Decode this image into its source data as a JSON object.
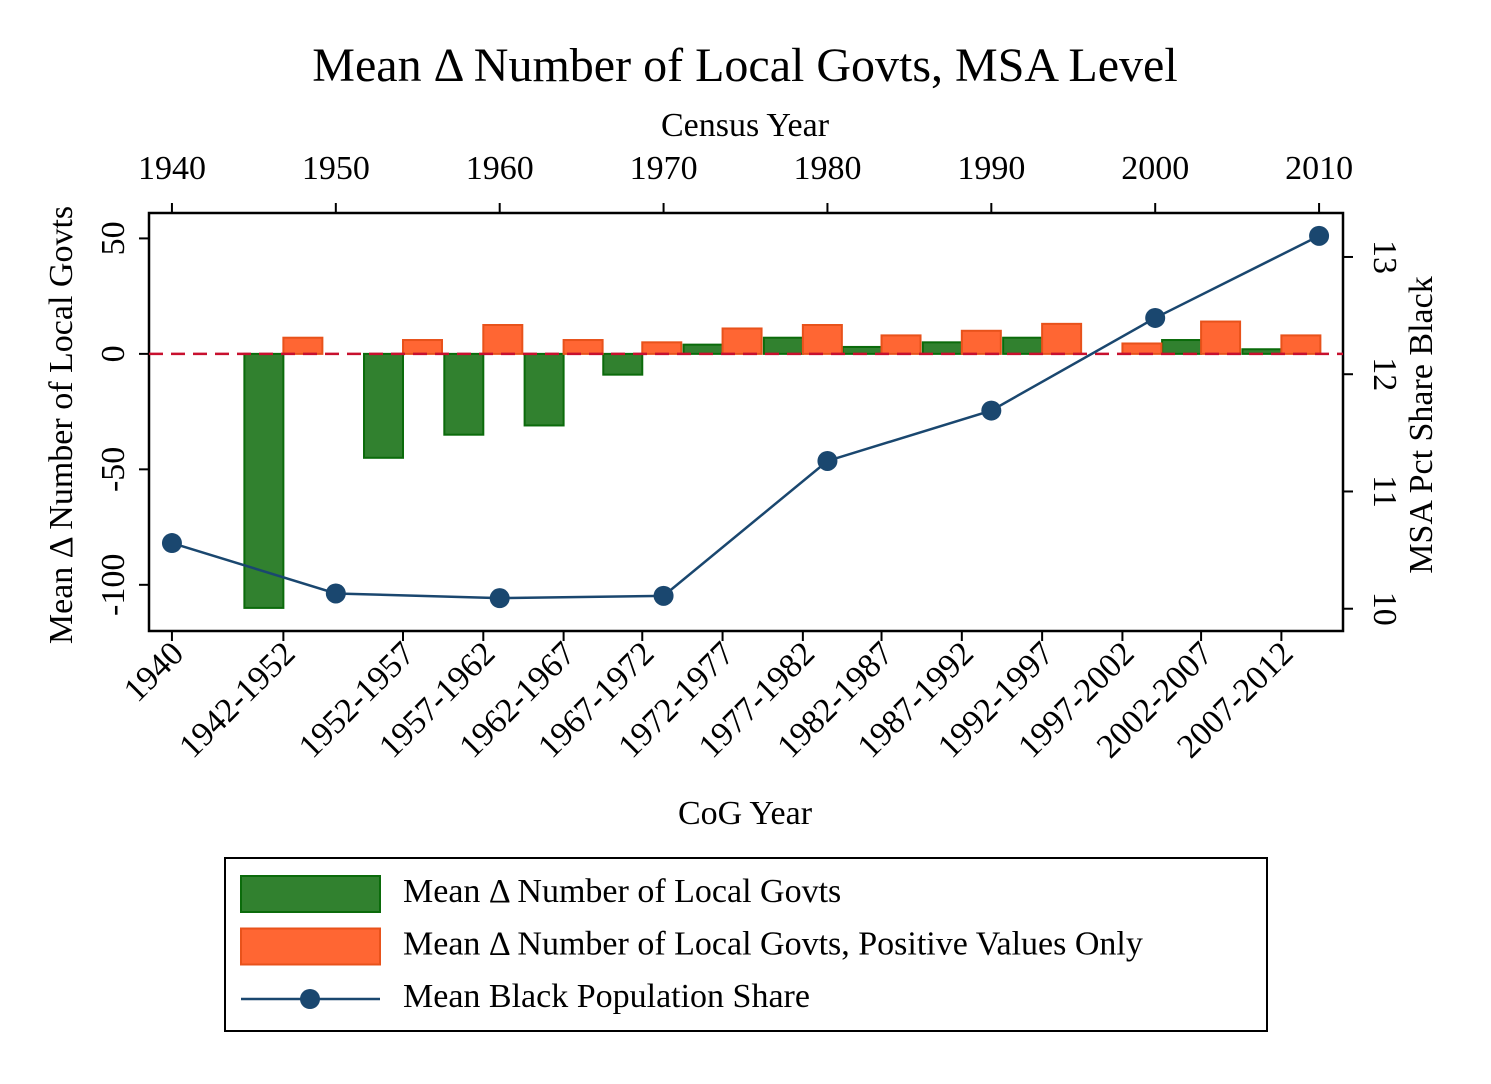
{
  "chart_data": {
    "type": "bar",
    "title": "Mean Δ Number of Local Govts, MSA Level",
    "x2_label": "Census Year",
    "x_label": "CoG Year",
    "y_label": "Mean Δ Number of Local Govts",
    "y2_label": "MSA Pct Share Black",
    "xlim": [
      1938.6,
      2011.46
    ],
    "x2ticks": [
      1940,
      1950,
      1960,
      1970,
      1980,
      1990,
      2000,
      2010
    ],
    "categories": [
      "1940",
      "1942-1952",
      "1952-1957",
      "1957-1962",
      "1962-1967",
      "1967-1972",
      "1972-1977",
      "1977-1982",
      "1982-1987",
      "1987-1992",
      "1992-1997",
      "1997-2002",
      "2002-2007",
      "2007-2012"
    ],
    "x": [
      1940,
      1946.8,
      1954.1,
      1959,
      1963.9,
      1968.7,
      1973.6,
      1978.5,
      1983.3,
      1988.2,
      1993.1,
      1998,
      2002.8,
      2007.7
    ],
    "ylim": [
      -120,
      61
    ],
    "yticks": [
      -100,
      -50,
      0,
      50
    ],
    "y2lim": [
      9.81,
      13.375
    ],
    "y2ticks": [
      10,
      11,
      12,
      13
    ],
    "zero_line": true,
    "zero_line_color": "#c8102e",
    "series": [
      {
        "name": "Mean Δ Number of Local Govts",
        "type": "bar",
        "color": "#31812f",
        "edge_color": "#0b6b0b",
        "values": [
          null,
          -110,
          -45,
          -35,
          -31,
          -9,
          4,
          7,
          3,
          5,
          7,
          0,
          6,
          2
        ]
      },
      {
        "name": "Mean Δ Number of Local Govts, Positive Values Only",
        "type": "bar",
        "color": "#ff6633",
        "edge_color": "#e8521b",
        "values": [
          null,
          7,
          6,
          12.5,
          6,
          5,
          11,
          12.5,
          8,
          10,
          13,
          4.5,
          14,
          8
        ]
      },
      {
        "name": "Mean Black Population Share",
        "type": "line",
        "axis": "y2",
        "color": "#1a476f",
        "x": [
          1940,
          1950,
          1960,
          1970,
          1980,
          1990,
          2000,
          2010
        ],
        "values": [
          10.56,
          10.13,
          10.09,
          10.11,
          11.26,
          11.69,
          12.48,
          13.18
        ]
      }
    ]
  }
}
